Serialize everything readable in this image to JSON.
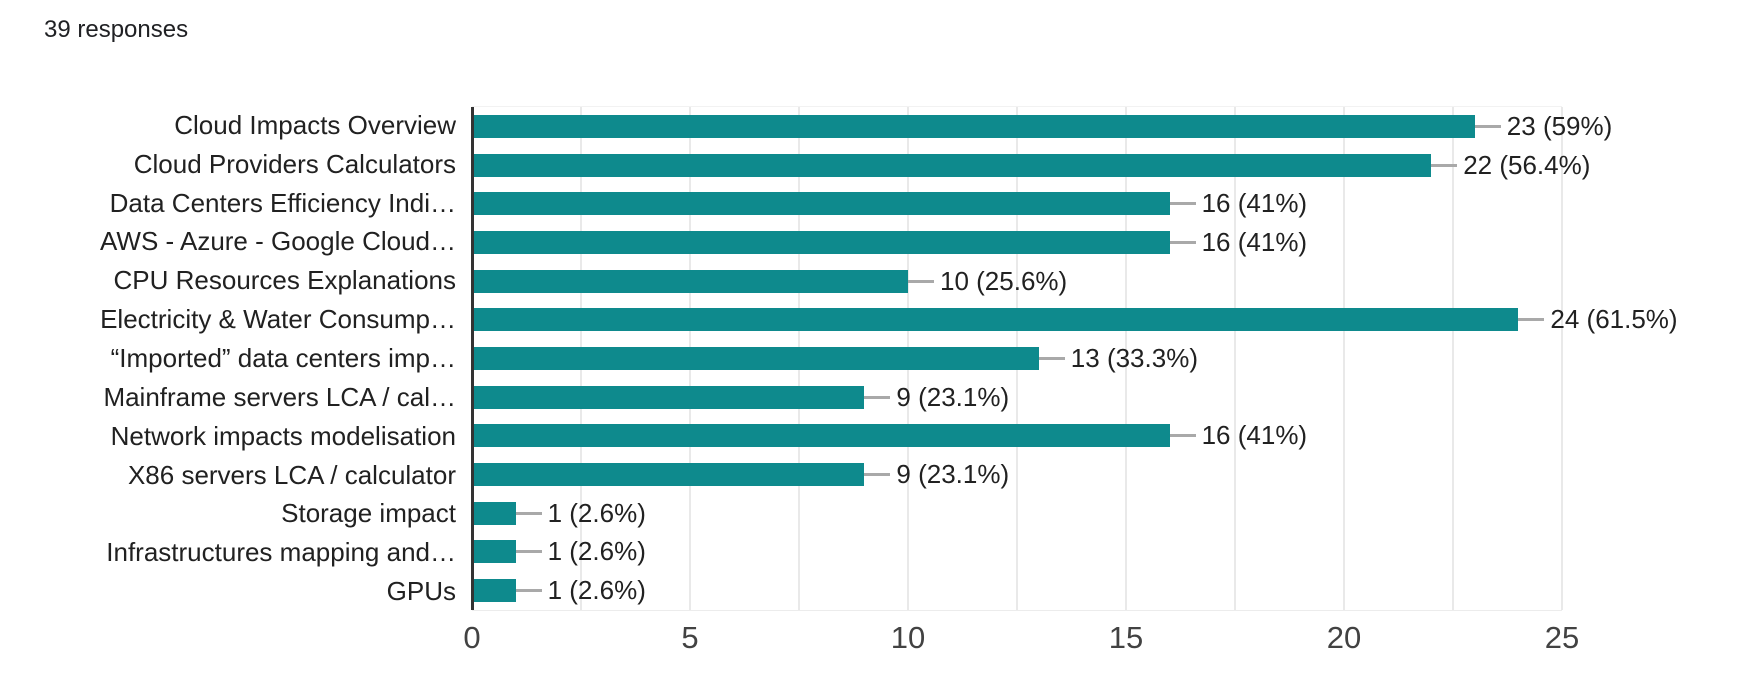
{
  "header": {
    "responses_count": "39 responses"
  },
  "chart_data": {
    "type": "bar",
    "orientation": "horizontal",
    "title": "",
    "categories": [
      "Cloud Impacts Overview",
      "Cloud Providers Calculators",
      "Data Centers Efficiency Indi…",
      "AWS - Azure - Google Cloud…",
      "CPU Resources Explanations",
      "Electricity & Water Consump…",
      "“Imported” data centers imp…",
      "Mainframe servers LCA / cal…",
      "Network impacts modelisation",
      "X86 servers LCA / calculator",
      "Storage impact",
      "Infrastructures mapping and…",
      "GPUs"
    ],
    "values": [
      23,
      22,
      16,
      16,
      10,
      24,
      13,
      9,
      16,
      9,
      1,
      1,
      1
    ],
    "value_labels": [
      "23 (59%)",
      "22 (56.4%)",
      "16 (41%)",
      "16 (41%)",
      "10 (25.6%)",
      "24 (61.5%)",
      "13 (33.3%)",
      "9 (23.1%)",
      "16 (41%)",
      "9 (23.1%)",
      "1 (2.6%)",
      "1 (2.6%)",
      "1 (2.6%)"
    ],
    "xlabel": "",
    "ylabel": "",
    "xlim": [
      0,
      25
    ],
    "x_ticks": [
      0,
      5,
      10,
      15,
      20,
      25
    ],
    "minor_gridline_step": 2.5,
    "grid": "on",
    "legend": "none",
    "colors": {
      "bar": "#0e8a8d",
      "axis_line": "#333333",
      "gridline": "#e9e9e9",
      "connector": "#a9a9a9",
      "category_label": "#212121",
      "value_label": "#212121",
      "tick_label": "#424242",
      "header_text": "#202124"
    }
  }
}
